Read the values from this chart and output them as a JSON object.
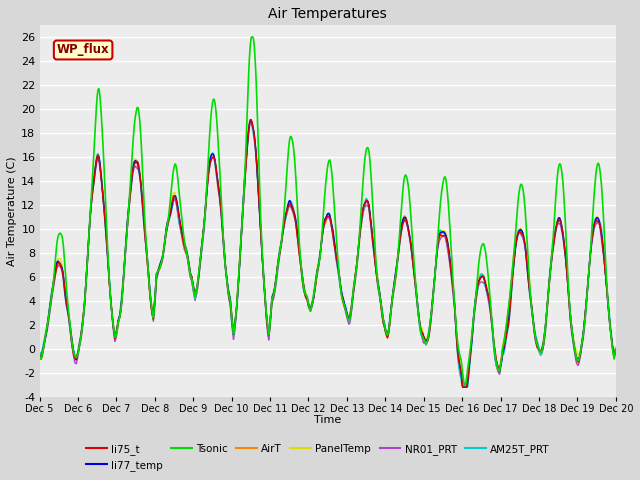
{
  "title": "Air Temperatures",
  "xlabel": "Time",
  "ylabel": "Air Temperature (C)",
  "ylim": [
    -4,
    27
  ],
  "yticks": [
    -4,
    -2,
    0,
    2,
    4,
    6,
    8,
    10,
    12,
    14,
    16,
    18,
    20,
    22,
    24,
    26
  ],
  "xtick_labels": [
    "Dec 5",
    "Dec 6",
    "Dec 7",
    "Dec 8",
    "Dec 9",
    "Dec 10",
    "Dec 11",
    "Dec 12",
    "Dec 13",
    "Dec 14",
    "Dec 15",
    "Dec 16",
    "Dec 17",
    "Dec 18",
    "Dec 19",
    "Dec 20"
  ],
  "series": {
    "li75_t": {
      "color": "#dd0000",
      "lw": 1.0
    },
    "li77_temp": {
      "color": "#0000dd",
      "lw": 1.0
    },
    "Tsonic": {
      "color": "#00dd00",
      "lw": 1.2
    },
    "AirT": {
      "color": "#ff8800",
      "lw": 1.0
    },
    "PanelTemp": {
      "color": "#dddd00",
      "lw": 1.0
    },
    "NR01_PRT": {
      "color": "#aa44cc",
      "lw": 1.0
    },
    "AM25T_PRT": {
      "color": "#00cccc",
      "lw": 1.2
    }
  },
  "legend_box": {
    "facecolor": "#ffffcc",
    "edgecolor": "#cc0000"
  },
  "legend_text": "WP_flux",
  "bg_color": "#d8d8d8",
  "plot_bg": "#ececec",
  "grid_color": "#ffffff",
  "n_points": 720
}
